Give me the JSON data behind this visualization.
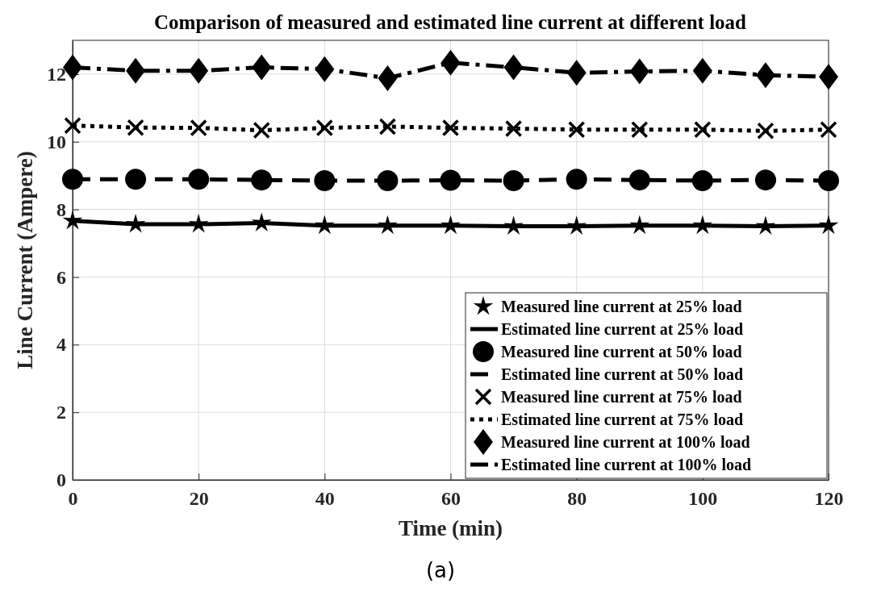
{
  "chart_data": {
    "type": "line",
    "title": "Comparison of measured and estimated line current at different load",
    "xlabel": "Time (min)",
    "ylabel": "Line Current (Ampere)",
    "annotations": [
      "(a)"
    ],
    "x": [
      0,
      10,
      20,
      30,
      40,
      50,
      60,
      70,
      80,
      90,
      100,
      110,
      120
    ],
    "xlim": [
      0,
      120
    ],
    "xticks": [
      0,
      20,
      40,
      60,
      80,
      100,
      120
    ],
    "ylim": [
      0,
      13
    ],
    "yticks": [
      0,
      2,
      4,
      6,
      8,
      10,
      12
    ],
    "grid": true,
    "legend": "bottom right",
    "series": [
      {
        "name": "Measured line current at 25% load",
        "type": "scatter",
        "marker": "star",
        "color": "#000000",
        "values": [
          7.66,
          7.56,
          7.56,
          7.6,
          7.52,
          7.52,
          7.52,
          7.5,
          7.5,
          7.52,
          7.52,
          7.5,
          7.52
        ]
      },
      {
        "name": "Estimated line current at 25% load",
        "type": "line",
        "line_style": "solid",
        "color": "#000000",
        "values": [
          7.66,
          7.56,
          7.56,
          7.6,
          7.52,
          7.52,
          7.52,
          7.5,
          7.5,
          7.52,
          7.52,
          7.5,
          7.52
        ]
      },
      {
        "name": "Measured line current at 50% load",
        "type": "scatter",
        "marker": "circle",
        "color": "#000000",
        "values": [
          8.89,
          8.89,
          8.89,
          8.87,
          8.85,
          8.85,
          8.86,
          8.85,
          8.89,
          8.87,
          8.85,
          8.87,
          8.85
        ]
      },
      {
        "name": "Estimated line current at 50% load",
        "type": "line",
        "line_style": "dashed",
        "color": "#000000",
        "values": [
          8.89,
          8.89,
          8.89,
          8.87,
          8.85,
          8.85,
          8.86,
          8.85,
          8.89,
          8.87,
          8.85,
          8.87,
          8.85
        ]
      },
      {
        "name": "Measured line current at 75% load",
        "type": "scatter",
        "marker": "cross",
        "color": "#000000",
        "values": [
          10.48,
          10.42,
          10.41,
          10.34,
          10.41,
          10.45,
          10.41,
          10.39,
          10.36,
          10.36,
          10.36,
          10.32,
          10.36
        ]
      },
      {
        "name": "Estimated line current at 75% load",
        "type": "line",
        "line_style": "dotted",
        "color": "#000000",
        "values": [
          10.48,
          10.42,
          10.41,
          10.34,
          10.41,
          10.45,
          10.41,
          10.39,
          10.36,
          10.36,
          10.36,
          10.32,
          10.36
        ]
      },
      {
        "name": "Measured line current at 100% load",
        "type": "scatter",
        "marker": "diamond",
        "color": "#000000",
        "values": [
          12.2,
          12.1,
          12.1,
          12.2,
          12.15,
          11.88,
          12.34,
          12.2,
          12.04,
          12.08,
          12.1,
          11.97,
          11.92
        ]
      },
      {
        "name": "Estimated line current at 100% load",
        "type": "line",
        "line_style": "dashdot",
        "color": "#000000",
        "values": [
          12.2,
          12.1,
          12.1,
          12.2,
          12.15,
          11.88,
          12.34,
          12.2,
          12.04,
          12.08,
          12.1,
          11.97,
          11.92
        ]
      }
    ]
  }
}
